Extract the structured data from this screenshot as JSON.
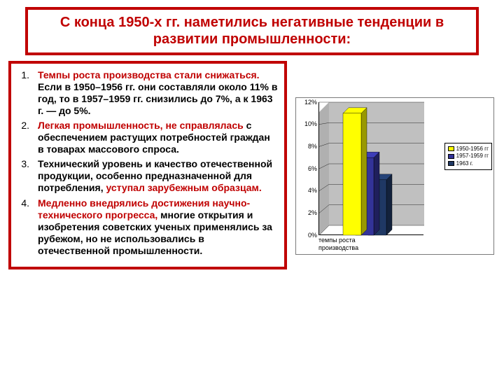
{
  "title": "С конца 1950-х гг. наметились негативные тенденции в развитии промышленности:",
  "points": [
    {
      "lead": "Темпы роста производства стали снижаться.",
      "rest": " Если в 1950–1956 гг. они составляли около 11% в год, то в 1957–1959 гг. снизились до 7%, а к 1963 г. — до 5%."
    },
    {
      "lead": "Легкая промышленность, не справлялась",
      "rest": " с обеспечением растущих потребностей граждан в товарах массового спроса."
    },
    {
      "lead_black": "Технический уровень и качество отечественной продукции, особенно предназначенной для потребления, ",
      "tail_red": "уступал зарубежным образцам."
    },
    {
      "lead": "Медленно внедрялись достижения научно-технического прогресса,",
      "rest": " многие открытия и изобретения советских ученых применялись за рубежом, но не использовались в отечественной промышленности."
    }
  ],
  "chart": {
    "type": "bar",
    "x_label_line1": "темпы роста",
    "x_label_line2": "производства",
    "y_ticks": [
      "0%",
      "2%",
      "4%",
      "6%",
      "8%",
      "10%",
      "12%"
    ],
    "ylim": [
      0,
      12
    ],
    "series": [
      {
        "label": "1950-1956 гг",
        "value": 11,
        "color": "#ffff00"
      },
      {
        "label": "1957-1959 гг",
        "value": 7,
        "color": "#333399"
      },
      {
        "label": "1963 г.",
        "value": 5,
        "color": "#1f3864"
      }
    ],
    "wall_color": "#c0c0c0",
    "grid_color": "#000000",
    "background_color": "#ffffff",
    "font_size_axis": 9,
    "font_size_legend": 8
  }
}
